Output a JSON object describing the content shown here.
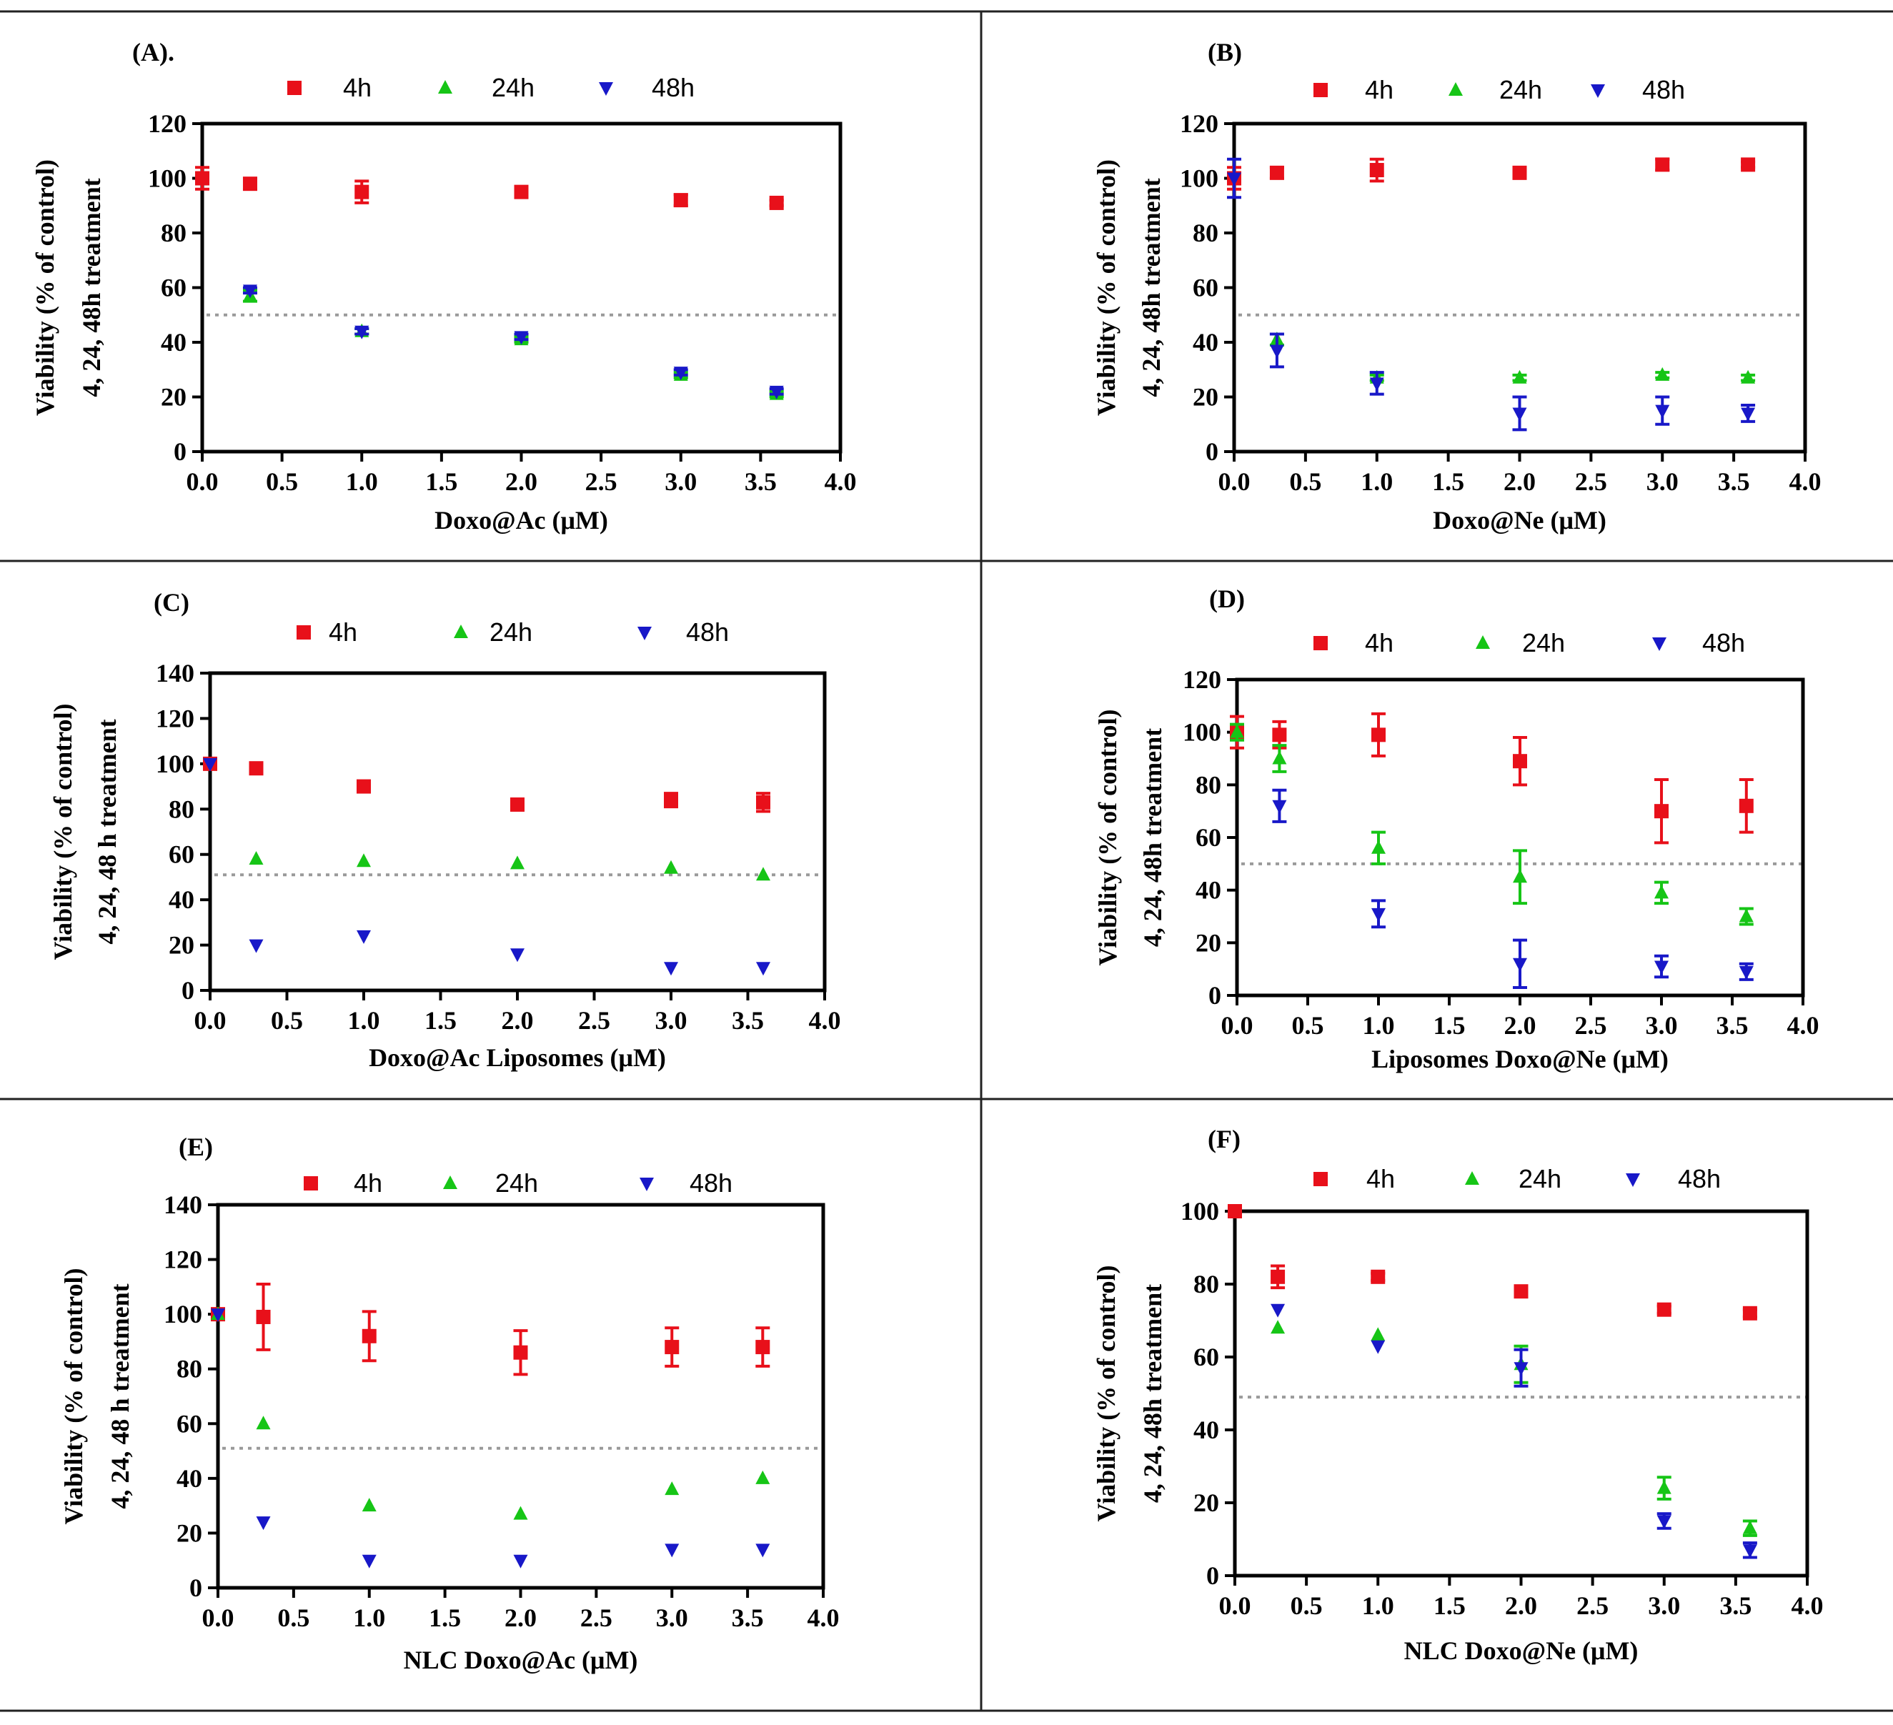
{
  "colors": {
    "4h": "#e8101a",
    "24h": "#16c516",
    "48h": "#1818c8",
    "reference": "#9a9a9a"
  },
  "chart_data": [
    {
      "type": "scatter",
      "panel_label": "(A).",
      "xlabel": "Doxo@Ac (μM)",
      "ylabel": [
        "Viability (% of control)",
        "4, 24, 48h treatment"
      ],
      "xlim": [
        0,
        4
      ],
      "ylim": [
        0,
        120
      ],
      "xticks": [
        "0.0",
        "0.5",
        "1.0",
        "1.5",
        "2.0",
        "2.5",
        "3.0",
        "3.5",
        "4.0"
      ],
      "yticks": [
        0,
        20,
        40,
        60,
        80,
        100,
        120
      ],
      "reference_line": 50,
      "legend": [
        "4h",
        "24h",
        "48h"
      ],
      "legend_position": "top",
      "series": [
        {
          "name": "4h",
          "marker": "square",
          "x": [
            0,
            0.3,
            1,
            2,
            3,
            3.6
          ],
          "y": [
            100,
            98,
            95,
            95,
            92,
            91
          ],
          "err": [
            4,
            2,
            4,
            2,
            2,
            1
          ]
        },
        {
          "name": "24h",
          "marker": "triangle-up",
          "x": [
            0.3,
            1,
            2,
            3,
            3.6
          ],
          "y": [
            57,
            44,
            41,
            28,
            21
          ],
          "err": [
            2,
            1,
            1,
            1,
            1
          ]
        },
        {
          "name": "48h",
          "marker": "triangle-down",
          "x": [
            0.3,
            1,
            2,
            3,
            3.6
          ],
          "y": [
            59,
            44,
            42,
            29,
            22
          ],
          "err": [
            1,
            1,
            1,
            1,
            1
          ]
        }
      ]
    },
    {
      "type": "scatter",
      "panel_label": "(B)",
      "xlabel": "Doxo@Ne (μM)",
      "ylabel": [
        "Viability (% of control)",
        "4, 24, 48h treatment"
      ],
      "xlim": [
        0,
        4
      ],
      "ylim": [
        0,
        120
      ],
      "xticks": [
        "0.0",
        "0.5",
        "1.0",
        "1.5",
        "2.0",
        "2.5",
        "3.0",
        "3.5",
        "4.0"
      ],
      "yticks": [
        0,
        20,
        40,
        60,
        80,
        100,
        120
      ],
      "reference_line": 50,
      "legend": [
        "4h",
        "24h",
        "48h"
      ],
      "legend_position": "top",
      "series": [
        {
          "name": "4h",
          "marker": "square",
          "x": [
            0,
            0.3,
            1,
            2,
            3,
            3.6
          ],
          "y": [
            100,
            102,
            103,
            102,
            105,
            105
          ],
          "err": [
            4,
            2,
            4,
            2,
            2,
            1
          ]
        },
        {
          "name": "24h",
          "marker": "triangle-up",
          "x": [
            0.3,
            1,
            2,
            3,
            3.6
          ],
          "y": [
            41,
            27,
            27,
            28,
            27
          ],
          "err": [
            2,
            1,
            1,
            1,
            1
          ]
        },
        {
          "name": "48h",
          "marker": "triangle-down",
          "x": [
            0,
            0.3,
            1,
            2,
            3,
            3.6
          ],
          "y": [
            100,
            37,
            25,
            14,
            15,
            14
          ],
          "err": [
            7,
            6,
            4,
            6,
            5,
            3
          ]
        }
      ]
    },
    {
      "type": "scatter",
      "panel_label": "(C)",
      "xlabel": "Doxo@Ac Liposomes (μM)",
      "ylabel": [
        "Viability (% of control)",
        "4, 24, 48 h treatment"
      ],
      "xlim": [
        0,
        4
      ],
      "ylim": [
        0,
        140
      ],
      "xticks": [
        "0.0",
        "0.5",
        "1.0",
        "1.5",
        "2.0",
        "2.5",
        "3.0",
        "3.5",
        "4.0"
      ],
      "yticks": [
        0,
        20,
        40,
        60,
        80,
        100,
        120,
        140
      ],
      "reference_line": 51,
      "legend": [
        "4h",
        "24h",
        "48h"
      ],
      "legend_position": "top",
      "series": [
        {
          "name": "4h",
          "marker": "square",
          "x": [
            0,
            0.3,
            1,
            2,
            3,
            3.6
          ],
          "y": [
            100,
            98,
            90,
            82,
            84,
            83
          ],
          "err": [
            1,
            1,
            1,
            2,
            3,
            4
          ]
        },
        {
          "name": "24h",
          "marker": "triangle-up",
          "x": [
            0.3,
            1,
            2,
            3,
            3.6
          ],
          "y": [
            58,
            57,
            56,
            54,
            51
          ],
          "err": [
            0,
            0,
            0,
            0,
            0
          ]
        },
        {
          "name": "48h",
          "marker": "triangle-down",
          "x": [
            0,
            0.3,
            1,
            2,
            3,
            3.6
          ],
          "y": [
            100,
            20,
            24,
            16,
            10,
            10
          ],
          "err": [
            0,
            0,
            0,
            0,
            0,
            0
          ]
        }
      ]
    },
    {
      "type": "scatter",
      "panel_label": "(D)",
      "xlabel": "Liposomes Doxo@Ne (μM)",
      "ylabel": [
        "Viability (% of control)",
        "4, 24, 48h treatment"
      ],
      "xlim": [
        0,
        4
      ],
      "ylim": [
        0,
        120
      ],
      "xticks": [
        "0.0",
        "0.5",
        "1.0",
        "1.5",
        "2.0",
        "2.5",
        "3.0",
        "3.5",
        "4.0"
      ],
      "yticks": [
        0,
        20,
        40,
        60,
        80,
        100,
        120
      ],
      "reference_line": 50,
      "legend": [
        "4h",
        "24h",
        "48h"
      ],
      "legend_position": "top",
      "series": [
        {
          "name": "4h",
          "marker": "square",
          "x": [
            0,
            0.3,
            1,
            2,
            3,
            3.6
          ],
          "y": [
            100,
            99,
            99,
            89,
            70,
            72
          ],
          "err": [
            6,
            5,
            8,
            9,
            12,
            10
          ]
        },
        {
          "name": "24h",
          "marker": "triangle-up",
          "x": [
            0,
            0.3,
            1,
            2,
            3,
            3.6
          ],
          "y": [
            100,
            90,
            56,
            45,
            39,
            30
          ],
          "err": [
            3,
            5,
            6,
            10,
            4,
            3
          ]
        },
        {
          "name": "48h",
          "marker": "triangle-down",
          "x": [
            0.3,
            1,
            2,
            3,
            3.6
          ],
          "y": [
            72,
            31,
            12,
            11,
            9
          ],
          "err": [
            6,
            5,
            9,
            4,
            3
          ]
        }
      ]
    },
    {
      "type": "scatter",
      "panel_label": "(E)",
      "xlabel": "NLC Doxo@Ac (μM)",
      "ylabel": [
        "Viability (% of control)",
        "4, 24, 48 h treatment"
      ],
      "xlim": [
        0,
        4
      ],
      "ylim": [
        0,
        140
      ],
      "xticks": [
        "0.0",
        "0.5",
        "1.0",
        "1.5",
        "2.0",
        "2.5",
        "3.0",
        "3.5",
        "4.0"
      ],
      "yticks": [
        0,
        20,
        40,
        60,
        80,
        100,
        120,
        140
      ],
      "reference_line": 51,
      "legend": [
        "4h",
        "24h",
        "48h"
      ],
      "legend_position": "top",
      "series": [
        {
          "name": "4h",
          "marker": "square",
          "x": [
            0,
            0.3,
            1,
            2,
            3,
            3.6
          ],
          "y": [
            100,
            99,
            92,
            86,
            88,
            88
          ],
          "err": [
            0,
            12,
            9,
            8,
            7,
            7
          ]
        },
        {
          "name": "24h",
          "marker": "triangle-up",
          "x": [
            0,
            0.3,
            1,
            2,
            3,
            3.6
          ],
          "y": [
            100,
            60,
            30,
            27,
            36,
            40
          ],
          "err": [
            0,
            0,
            0,
            0,
            0,
            0
          ]
        },
        {
          "name": "48h",
          "marker": "triangle-down",
          "x": [
            0,
            0.3,
            1,
            2,
            3,
            3.6
          ],
          "y": [
            100,
            24,
            10,
            10,
            14,
            14
          ],
          "err": [
            0,
            0,
            0,
            0,
            0,
            0
          ]
        }
      ]
    },
    {
      "type": "scatter",
      "panel_label": "(F)",
      "xlabel": "NLC Doxo@Ne (μM)",
      "ylabel": [
        "Viability (% of control)",
        "4, 24, 48h treatment"
      ],
      "xlim": [
        0,
        4
      ],
      "ylim": [
        0,
        100
      ],
      "xticks": [
        "0.0",
        "0.5",
        "1.0",
        "1.5",
        "2.0",
        "2.5",
        "3.0",
        "3.5",
        "4.0"
      ],
      "yticks": [
        0,
        20,
        40,
        60,
        80,
        100
      ],
      "reference_line": 49,
      "legend": [
        "4h",
        "24h",
        "48h"
      ],
      "legend_position": "top",
      "series": [
        {
          "name": "4h",
          "marker": "square",
          "x": [
            0,
            0.3,
            1,
            2,
            3,
            3.6
          ],
          "y": [
            100,
            82,
            82,
            78,
            73,
            72
          ],
          "err": [
            0,
            3,
            1,
            1,
            1,
            1
          ]
        },
        {
          "name": "24h",
          "marker": "triangle-up",
          "x": [
            0.3,
            1,
            2,
            3,
            3.6
          ],
          "y": [
            68,
            66,
            58,
            24,
            13
          ],
          "err": [
            0,
            0,
            5,
            3,
            2
          ]
        },
        {
          "name": "48h",
          "marker": "triangle-down",
          "x": [
            0.3,
            1,
            2,
            3,
            3.6
          ],
          "y": [
            73,
            63,
            57,
            15,
            7
          ],
          "err": [
            0,
            0,
            5,
            2,
            2
          ]
        }
      ]
    }
  ]
}
